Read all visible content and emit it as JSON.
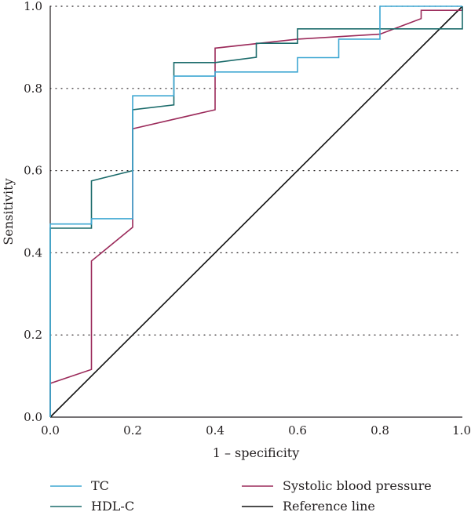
{
  "chart_data": {
    "type": "line",
    "xlabel": "1 – specificity",
    "ylabel": "Sensitivity",
    "xlim": [
      0,
      1
    ],
    "ylim": [
      0,
      1
    ],
    "x_ticks": [
      "0.0",
      "0.2",
      "0.4",
      "0.6",
      "0.8",
      "1.0"
    ],
    "y_ticks": [
      "0.0",
      "0.2",
      "0.4",
      "0.6",
      "0.8",
      "1.0"
    ],
    "grid": "horizontal dotted",
    "legend_position": "bottom",
    "series": [
      {
        "name": "TC",
        "color": "#3ea7d2",
        "points": [
          [
            0,
            0
          ],
          [
            0,
            0.47
          ],
          [
            0.1,
            0.47
          ],
          [
            0.1,
            0.483
          ],
          [
            0.2,
            0.483
          ],
          [
            0.2,
            0.782
          ],
          [
            0.3,
            0.782
          ],
          [
            0.3,
            0.83
          ],
          [
            0.4,
            0.83
          ],
          [
            0.4,
            0.84
          ],
          [
            0.6,
            0.84
          ],
          [
            0.6,
            0.875
          ],
          [
            0.7,
            0.875
          ],
          [
            0.7,
            0.92
          ],
          [
            0.8,
            0.92
          ],
          [
            0.8,
            1.0
          ],
          [
            1.0,
            1.0
          ]
        ]
      },
      {
        "name": "HDL-C",
        "color": "#1b6b6b",
        "points": [
          [
            0,
            0
          ],
          [
            0,
            0.46
          ],
          [
            0.1,
            0.46
          ],
          [
            0.1,
            0.575
          ],
          [
            0.2,
            0.6
          ],
          [
            0.2,
            0.748
          ],
          [
            0.3,
            0.76
          ],
          [
            0.3,
            0.863
          ],
          [
            0.4,
            0.863
          ],
          [
            0.5,
            0.876
          ],
          [
            0.5,
            0.91
          ],
          [
            0.6,
            0.91
          ],
          [
            0.6,
            0.945
          ],
          [
            1.0,
            0.945
          ],
          [
            1.0,
            1.0
          ]
        ]
      },
      {
        "name": "Systolic blood pressure",
        "color": "#9b2a5a",
        "points": [
          [
            0,
            0
          ],
          [
            0,
            0.082
          ],
          [
            0.1,
            0.116
          ],
          [
            0.1,
            0.38
          ],
          [
            0.2,
            0.462
          ],
          [
            0.2,
            0.702
          ],
          [
            0.4,
            0.748
          ],
          [
            0.4,
            0.898
          ],
          [
            0.6,
            0.92
          ],
          [
            0.8,
            0.932
          ],
          [
            0.9,
            0.97
          ],
          [
            0.9,
            0.99
          ],
          [
            1.0,
            0.99
          ],
          [
            1.0,
            1.0
          ]
        ]
      },
      {
        "name": "Reference line",
        "color": "#111111",
        "points": [
          [
            0,
            0
          ],
          [
            1,
            1
          ]
        ]
      }
    ]
  }
}
